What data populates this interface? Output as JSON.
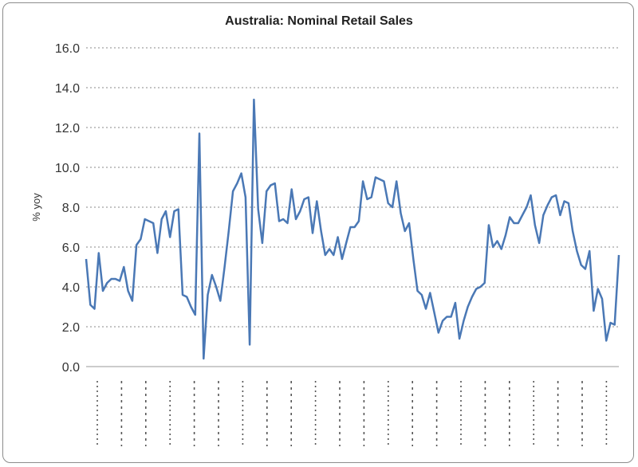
{
  "chart_data": {
    "type": "line",
    "title": "Australia: Nominal Retail Sales",
    "ylabel": "% yoy",
    "xlabel": "",
    "ylim": [
      0,
      16
    ],
    "yticks": [
      "0.0",
      "2.0",
      "4.0",
      "6.0",
      "8.0",
      "10.0",
      "12.0",
      "14.0",
      "16.0"
    ],
    "grid": true,
    "series": [
      {
        "name": "",
        "color": "#4a78b5",
        "values": [
          5.4,
          3.1,
          2.9,
          5.7,
          3.8,
          4.2,
          4.4,
          4.4,
          4.3,
          5.0,
          3.8,
          3.3,
          6.1,
          6.4,
          7.4,
          7.3,
          7.2,
          5.7,
          7.4,
          7.8,
          6.5,
          7.8,
          7.9,
          3.6,
          3.5,
          3.0,
          2.6,
          11.7,
          0.4,
          3.6,
          4.6,
          4.0,
          3.3,
          5.0,
          6.8,
          8.8,
          9.2,
          9.7,
          8.5,
          1.1,
          13.4,
          7.9,
          6.2,
          8.8,
          9.1,
          9.2,
          7.3,
          7.4,
          7.2,
          8.9,
          7.4,
          7.8,
          8.4,
          8.5,
          6.7,
          8.3,
          6.8,
          5.6,
          5.9,
          5.6,
          6.5,
          5.4,
          6.2,
          7.0,
          7.0,
          7.3,
          9.3,
          8.4,
          8.5,
          9.5,
          9.4,
          9.3,
          8.2,
          8.0,
          9.3,
          7.7,
          6.8,
          7.2,
          5.4,
          3.8,
          3.6,
          2.9,
          3.7,
          2.7,
          1.7,
          2.3,
          2.5,
          2.5,
          3.2,
          1.4,
          2.3,
          3.0,
          3.5,
          3.9,
          4.0,
          4.2,
          7.1,
          6.0,
          6.3,
          5.9,
          6.6,
          7.5,
          7.2,
          7.2,
          7.6,
          8.0,
          8.6,
          7.1,
          6.2,
          7.6,
          8.1,
          8.5,
          8.6,
          7.6,
          8.3,
          8.2,
          6.8,
          5.8,
          5.1,
          4.9,
          5.8,
          2.8,
          3.9,
          3.4,
          1.3,
          2.2,
          2.1,
          5.6
        ]
      }
    ]
  }
}
